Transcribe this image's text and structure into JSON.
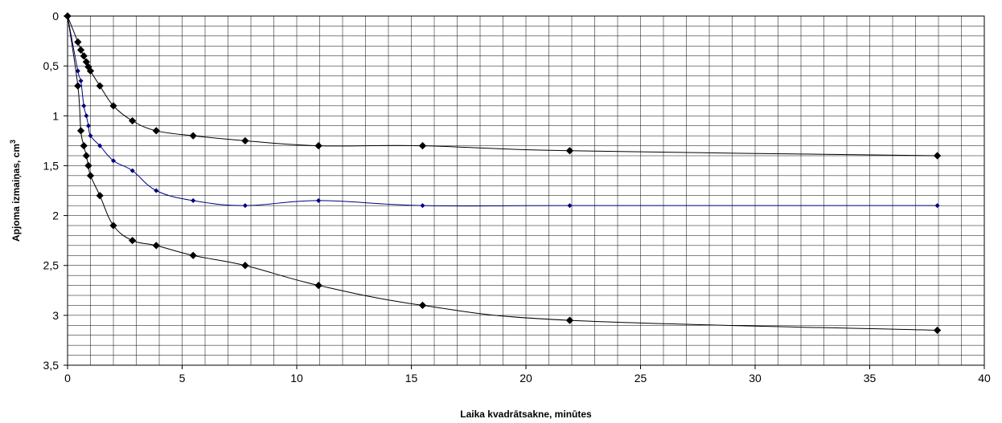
{
  "chart_data": {
    "type": "line",
    "title": "",
    "xlabel": "Laika kvadrātsakne, minūtes",
    "ylabel": "Apjoma izmaiņas, cm",
    "ylabel_superscript": "3",
    "xlim": [
      0,
      40
    ],
    "ylim": [
      0,
      3.5
    ],
    "y_inverted": true,
    "grid": true,
    "x_minor_step": 1,
    "y_minor_step": 0.1,
    "x_ticks": [
      "0",
      "5",
      "10",
      "15",
      "20",
      "25",
      "30",
      "35",
      "40"
    ],
    "y_ticks": [
      "0",
      "0,5",
      "1",
      "1,5",
      "2",
      "2,5",
      "3",
      "3,5"
    ],
    "series": [
      {
        "color": "#000000",
        "marker": "diamond",
        "x": [
          0,
          0.45,
          0.58,
          0.71,
          0.82,
          0.91,
          1.0,
          1.41,
          2.0,
          2.83,
          3.87,
          5.48,
          7.75,
          10.95,
          15.49,
          21.91,
          37.95
        ],
        "y": [
          0,
          0.26,
          0.34,
          0.4,
          0.46,
          0.51,
          0.55,
          0.7,
          0.9,
          1.05,
          1.15,
          1.2,
          1.25,
          1.3,
          1.3,
          1.35,
          1.4
        ]
      },
      {
        "color": "#00007f",
        "marker": "small-diamond",
        "x": [
          0,
          0.45,
          0.58,
          0.71,
          0.82,
          0.91,
          1.0,
          1.41,
          2.0,
          2.83,
          3.87,
          5.48,
          7.75,
          10.95,
          15.49,
          21.91,
          37.95
        ],
        "y": [
          0,
          0.55,
          0.65,
          0.9,
          1.0,
          1.1,
          1.2,
          1.3,
          1.45,
          1.55,
          1.75,
          1.85,
          1.9,
          1.85,
          1.9,
          1.9,
          1.9
        ]
      },
      {
        "color": "#000000",
        "marker": "diamond",
        "x": [
          0,
          0.45,
          0.58,
          0.71,
          0.82,
          0.91,
          1.0,
          1.41,
          2.0,
          2.83,
          3.87,
          5.48,
          7.75,
          10.95,
          15.49,
          21.91,
          37.95
        ],
        "y": [
          0,
          0.7,
          1.15,
          1.3,
          1.4,
          1.5,
          1.6,
          1.8,
          2.1,
          2.25,
          2.3,
          2.4,
          2.5,
          2.7,
          2.9,
          3.05,
          3.15
        ]
      }
    ]
  }
}
